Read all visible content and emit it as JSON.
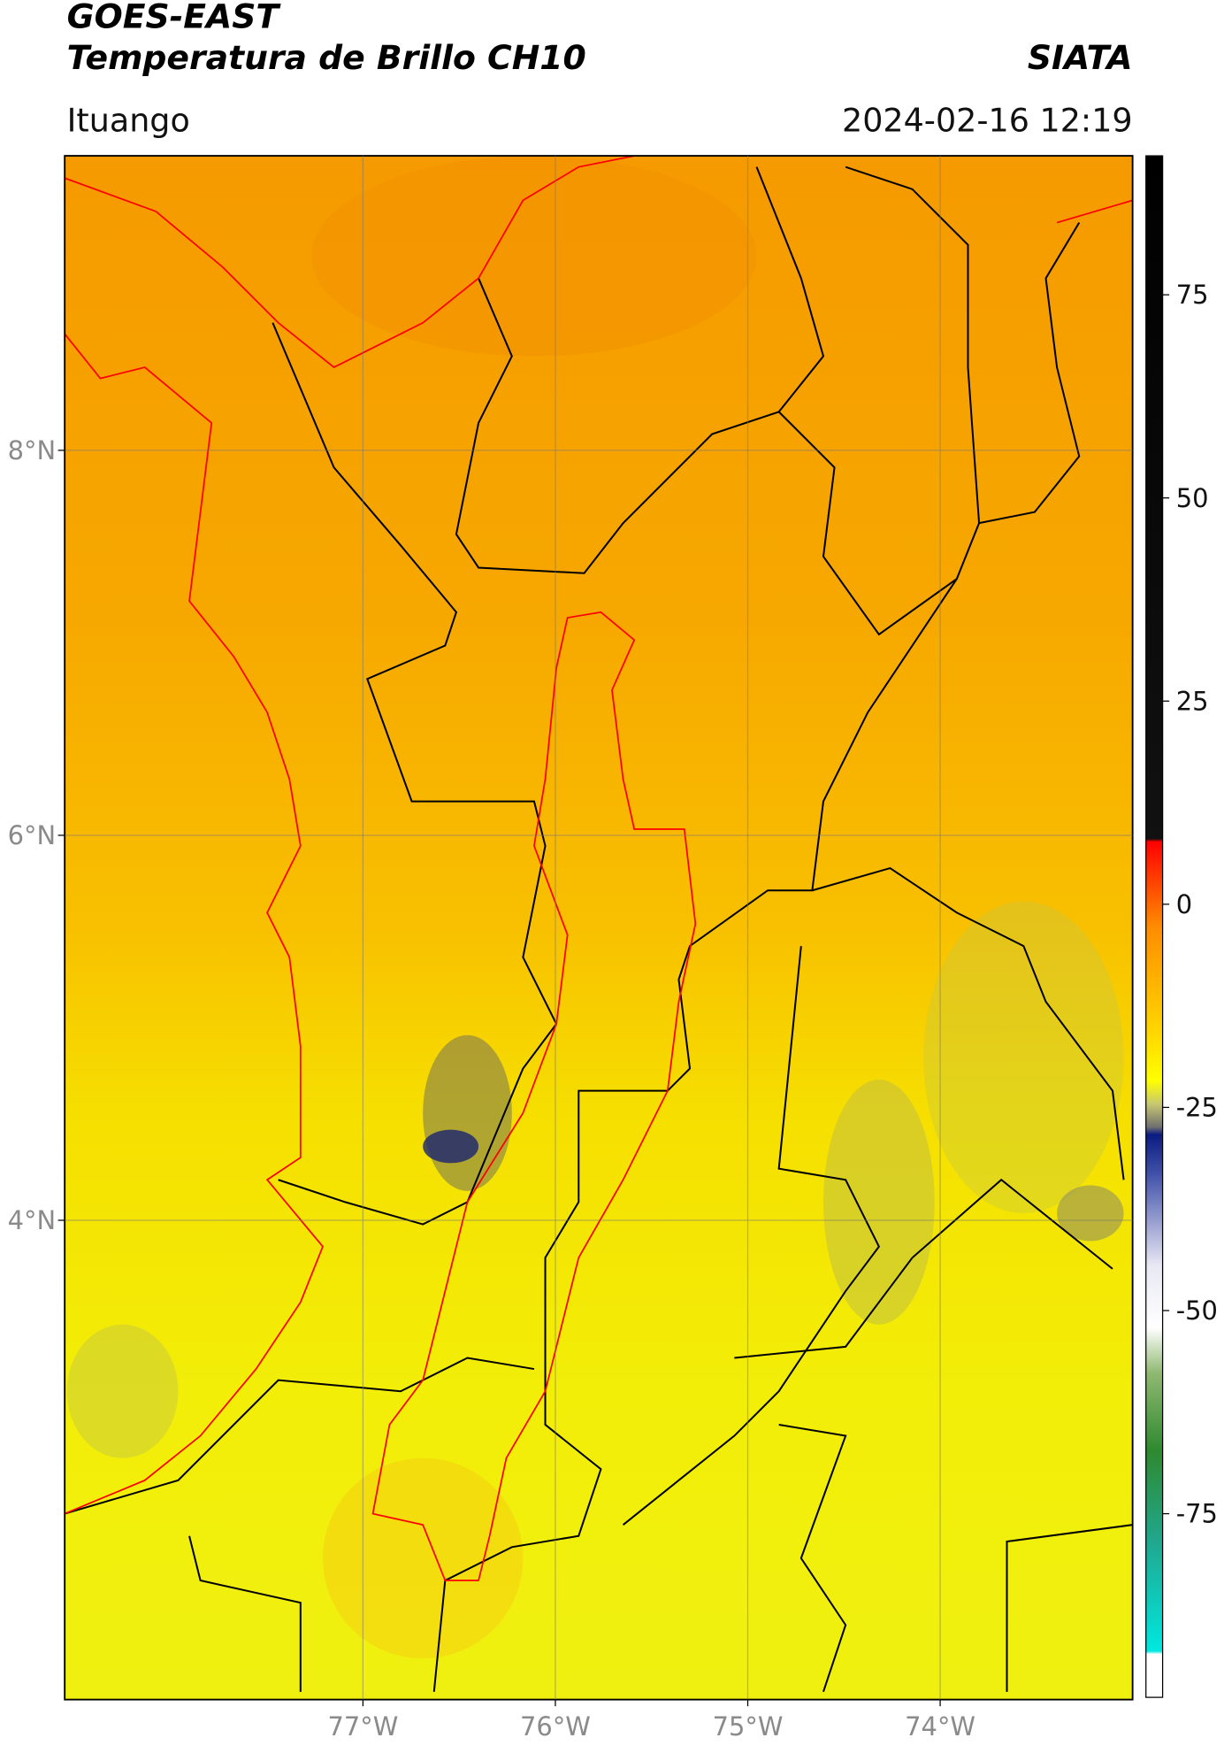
{
  "header": {
    "satellite": "GOES-EAST",
    "product": "Temperatura de Brillo CH10",
    "source": "SIATA",
    "location": "Ituango",
    "datetime": "2024-02-16 12:19"
  },
  "map": {
    "xlim": [
      -78.55,
      -73.0
    ],
    "ylim": [
      1.51,
      9.53
    ],
    "xticks": [
      {
        "value": -77,
        "label": "77°W"
      },
      {
        "value": -76,
        "label": "76°W"
      },
      {
        "value": -75,
        "label": "75°W"
      },
      {
        "value": -74,
        "label": "74°W"
      }
    ],
    "yticks": [
      {
        "value": 8,
        "label": "8°N"
      },
      {
        "value": 6,
        "label": "6°N"
      },
      {
        "value": 4,
        "label": "4°N"
      }
    ],
    "grid": true
  },
  "colorbar": {
    "lim": [
      -97.6,
      92.1
    ],
    "ticks": [
      75,
      50,
      25,
      0,
      -25,
      -50,
      -75
    ]
  }
}
